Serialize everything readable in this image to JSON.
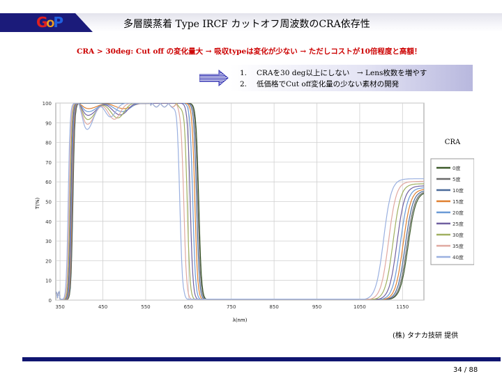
{
  "header": {
    "logo": {
      "c1": "G",
      "c2": "O",
      "c3": "P"
    },
    "title": "多層膜蒸着 Type IRCF カットオフ周波数のCRA依存性"
  },
  "subtitle": "CRA > 30deg: Cut off の変化量大 → 吸収typeは変化が少ない → ただしコストが10倍程度と高額！",
  "notes": [
    {
      "num": "1.",
      "text": "CRAを30 deg以上にしない　→ Lens枚数を増やす"
    },
    {
      "num": "2.",
      "text": "低価格でCut off変化量の少ない素材の開発"
    }
  ],
  "chart_data": {
    "type": "line",
    "xlabel": "λ(nm)",
    "ylabel": "T(%)",
    "x_ticks": [
      350,
      450,
      550,
      650,
      750,
      850,
      950,
      1050,
      1150
    ],
    "y_ticks": [
      0,
      10,
      20,
      30,
      40,
      50,
      60,
      70,
      80,
      90,
      100
    ],
    "xlim": [
      340,
      1200
    ],
    "ylim": [
      0,
      100
    ],
    "grid": true,
    "legend_title": "CRA",
    "legend_position": "right",
    "series": [
      {
        "name": "0度",
        "color": "#3c5a2a",
        "shift": 0
      },
      {
        "name": "5度",
        "color": "#6a6a6a",
        "shift": -2
      },
      {
        "name": "10度",
        "color": "#4a6a9a",
        "shift": -5
      },
      {
        "name": "15度",
        "color": "#e08030",
        "shift": -9
      },
      {
        "name": "20度",
        "color": "#6a9ad6",
        "shift": -14
      },
      {
        "name": "25度",
        "color": "#7060a0",
        "shift": -20
      },
      {
        "name": "30度",
        "color": "#a0b060",
        "shift": -27
      },
      {
        "name": "35度",
        "color": "#e0a8a0",
        "shift": -35
      },
      {
        "name": "40度",
        "color": "#9ab0e0",
        "shift": -44
      }
    ],
    "anchors": {
      "rise": [
        380,
        100
      ],
      "fall": [
        674,
        100
      ],
      "nir_rise": [
        1163,
        55
      ]
    }
  },
  "credit": "(株) タナカ技研 提供",
  "page_number": "34 / 88"
}
